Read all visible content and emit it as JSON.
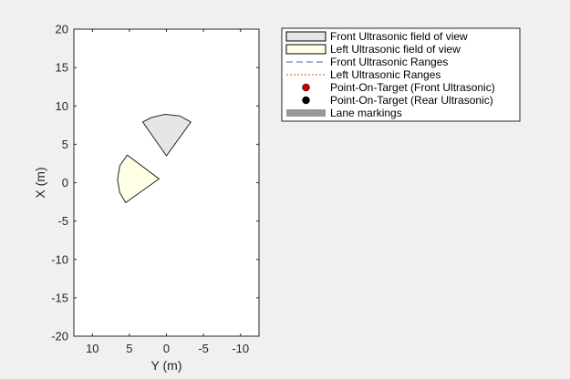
{
  "chart_data": {
    "type": "scatter",
    "xlabel": "Y (m)",
    "ylabel": "X (m)",
    "xlim": [
      12.5,
      -12.5
    ],
    "ylim": [
      -20,
      20
    ],
    "x_ticks": [
      10,
      5,
      0,
      -5,
      -10
    ],
    "y_ticks": [
      -20,
      -15,
      -10,
      -5,
      0,
      5,
      10,
      15,
      20
    ],
    "grid": false,
    "legend_position": "top-right outside",
    "sectors": [
      {
        "name": "Front Ultrasonic field of view",
        "apex": [
          0.0,
          3.5
        ],
        "boundary": [
          [
            3.2,
            7.9
          ],
          [
            2.0,
            8.5
          ],
          [
            0.2,
            8.9
          ],
          [
            -1.8,
            8.7
          ],
          [
            -3.3,
            7.9
          ]
        ],
        "fill": "#e6e6e6"
      },
      {
        "name": "Left Ultrasonic field of view",
        "apex": [
          1.0,
          0.5
        ],
        "boundary": [
          [
            5.3,
            3.6
          ],
          [
            6.3,
            2.2
          ],
          [
            6.6,
            0.4
          ],
          [
            6.3,
            -1.3
          ],
          [
            5.5,
            -2.6
          ]
        ],
        "fill": "#ffffe6"
      }
    ],
    "legend": [
      {
        "label": "Front Ultrasonic field of view",
        "kind": "patch",
        "fill": "#e6e6e6",
        "stroke": "#000000"
      },
      {
        "label": "Left Ultrasonic field of view",
        "kind": "patch",
        "fill": "#ffffe6",
        "stroke": "#000000"
      },
      {
        "label": "Front Ultrasonic Ranges",
        "kind": "line",
        "stroke": "#3a6ea5",
        "dash": "7,4"
      },
      {
        "label": "Left Ultrasonic Ranges",
        "kind": "line",
        "stroke": "#d95319",
        "dash": "2,2"
      },
      {
        "label": "Point-On-Target (Front Ultrasonic)",
        "kind": "marker",
        "fill": "#cc0000"
      },
      {
        "label": "Point-On-Target (Rear Ultrasonic)",
        "kind": "marker",
        "fill": "#000000"
      },
      {
        "label": "Lane markings",
        "kind": "band",
        "fill": "#999999"
      }
    ]
  }
}
